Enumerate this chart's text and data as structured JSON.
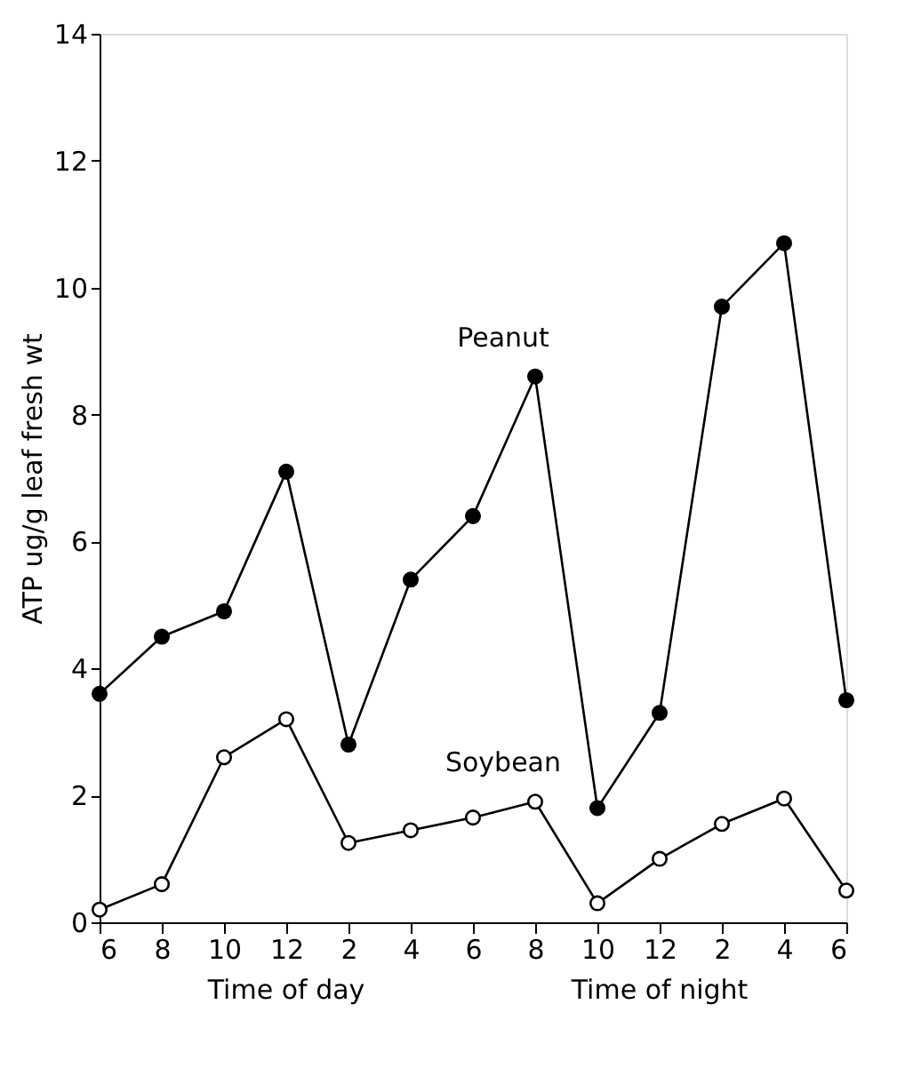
{
  "chart_data": {
    "type": "line",
    "ylabel": "ATP ug/g leaf fresh wt",
    "categories": [
      "6",
      "8",
      "10",
      "12",
      "2",
      "4",
      "6",
      "8",
      "10",
      "12",
      "2",
      "4",
      "6"
    ],
    "series": [
      {
        "name": "Peanut",
        "color": "#000000",
        "values": [
          3.6,
          4.5,
          4.9,
          7.1,
          2.8,
          5.4,
          6.4,
          8.6,
          1.8,
          3.3,
          9.7,
          10.7,
          3.5
        ]
      },
      {
        "name": "Soybean",
        "color": "#000000",
        "values": [
          0.2,
          0.6,
          2.6,
          3.2,
          1.25,
          1.45,
          1.65,
          1.9,
          0.3,
          1.0,
          1.55,
          1.95,
          0.5
        ]
      }
    ],
    "annotations": [
      "Time of day",
      "Time of night"
    ],
    "ylim": [
      0,
      14
    ],
    "yticks": [
      0,
      2,
      4,
      6,
      8,
      10,
      12,
      14
    ],
    "grid": false,
    "marker": "circle",
    "line_style": "solid"
  }
}
